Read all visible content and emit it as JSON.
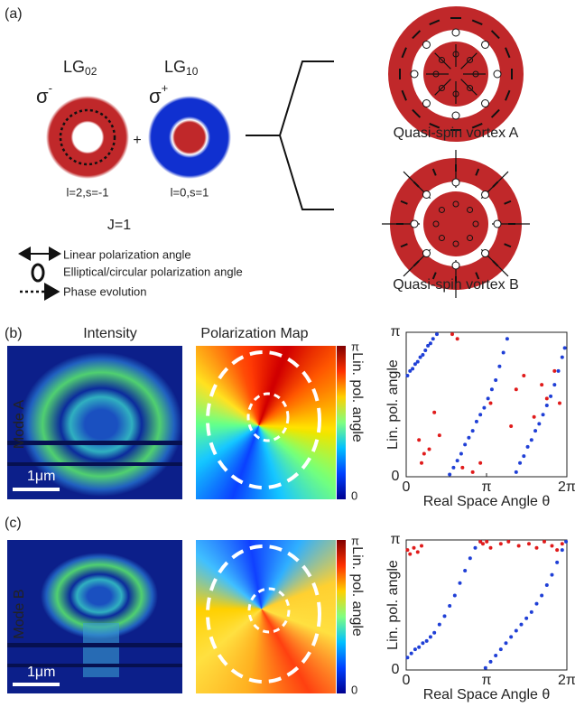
{
  "panel_a": {
    "label": "(a)",
    "lg02": {
      "base": "LG",
      "sub": "02"
    },
    "lg10": {
      "base": "LG",
      "sub": "10"
    },
    "sigma_minus": {
      "base": "σ",
      "sup": "-"
    },
    "sigma_plus": {
      "base": "σ",
      "sup": "+"
    },
    "plus": "+",
    "left_state": "l=2,s=-1",
    "right_state": "l=0,s=1",
    "total": "J=1",
    "legend": [
      "Linear polarization angle",
      "Elliptical/circular polarization angle",
      "Phase evolution"
    ],
    "vortex_a": "Quasi-spin vortex A",
    "vortex_b": "Quasi-spin vortex B"
  },
  "panel_b": {
    "label": "(b)",
    "intensity": "Intensity",
    "polmap": "Polarization Map",
    "mode": "Mode A",
    "scale": "1μm",
    "cb_top": "π",
    "cb_bottom": "0",
    "cb_label": "Lin. pol. angle"
  },
  "panel_c": {
    "label": "(c)",
    "mode": "Mode B",
    "scale": "1μm",
    "cb_top": "π",
    "cb_bottom": "0",
    "cb_label": "Lin. pol. angle"
  },
  "chart_data": [
    {
      "type": "scatter",
      "xlabel": "Real Space Angle θ",
      "ylabel": "Lin. pol. angle",
      "xlim": [
        0,
        6.2832
      ],
      "ylim": [
        0,
        3.1416
      ],
      "xticks": [
        0,
        {
          "value": 3.1416,
          "label": "π"
        },
        {
          "value": 6.2832,
          "label": "2π"
        }
      ],
      "yticks": [
        0,
        {
          "value": 3.1416,
          "label": "π"
        }
      ],
      "series": [
        {
          "color": "#1f3fd6",
          "x": [
            0.05,
            0.15,
            0.25,
            0.35,
            0.45,
            0.55,
            0.65,
            0.75,
            0.85,
            0.95,
            1.05,
            1.2,
            1.7,
            1.85,
            2.0,
            2.15,
            2.3,
            2.45,
            2.6,
            2.75,
            2.9,
            3.05,
            3.2,
            3.35,
            3.5,
            3.65,
            3.8,
            3.95,
            4.3,
            4.45,
            4.6,
            4.75,
            4.9,
            5.05,
            5.2,
            5.35,
            5.5,
            5.65,
            5.8,
            5.95,
            6.1,
            6.2
          ],
          "values": [
            2.2,
            2.3,
            2.35,
            2.45,
            2.5,
            2.6,
            2.65,
            2.75,
            2.85,
            2.9,
            3.0,
            3.1,
            0.05,
            0.2,
            0.35,
            0.5,
            0.7,
            0.85,
            1.0,
            1.2,
            1.35,
            1.5,
            1.7,
            1.9,
            2.1,
            2.4,
            2.7,
            3.0,
            0.1,
            0.3,
            0.45,
            0.65,
            0.8,
            1.0,
            1.15,
            1.35,
            1.55,
            1.75,
            2.0,
            2.3,
            2.6,
            2.8
          ]
        },
        {
          "color": "#e01b1b",
          "x": [
            0.5,
            0.7,
            0.9,
            0.6,
            1.1,
            1.3,
            1.8,
            2.0,
            2.2,
            2.6,
            2.9,
            3.3,
            4.1,
            4.3,
            4.6,
            5.0,
            5.3,
            5.5,
            5.8,
            6.0
          ],
          "values": [
            0.8,
            0.5,
            0.6,
            0.3,
            1.4,
            0.9,
            3.1,
            3.0,
            0.2,
            0.1,
            0.3,
            1.6,
            1.1,
            1.9,
            2.2,
            1.3,
            2.0,
            1.7,
            2.3,
            1.6
          ]
        }
      ]
    },
    {
      "type": "scatter",
      "xlabel": "Real Space Angle θ",
      "ylabel": "Lin. pol. angle",
      "xlim": [
        0,
        6.2832
      ],
      "ylim": [
        0,
        3.1416
      ],
      "xticks": [
        0,
        {
          "value": 3.1416,
          "label": "π"
        },
        {
          "value": 6.2832,
          "label": "2π"
        }
      ],
      "yticks": [
        0,
        {
          "value": 3.1416,
          "label": "π"
        }
      ],
      "series": [
        {
          "color": "#1f3fd6",
          "x": [
            0.05,
            0.2,
            0.35,
            0.5,
            0.65,
            0.8,
            0.95,
            1.1,
            1.3,
            1.5,
            1.7,
            1.9,
            2.1,
            2.3,
            2.5,
            2.7,
            2.9,
            3.1,
            3.3,
            3.5,
            3.7,
            3.9,
            4.1,
            4.3,
            4.5,
            4.7,
            4.9,
            5.1,
            5.3,
            5.5,
            5.7,
            5.9,
            6.1,
            6.25
          ],
          "values": [
            0.3,
            0.4,
            0.5,
            0.55,
            0.65,
            0.7,
            0.8,
            0.9,
            1.1,
            1.3,
            1.55,
            1.8,
            2.1,
            2.4,
            2.7,
            2.95,
            3.1,
            0.05,
            0.2,
            0.35,
            0.5,
            0.65,
            0.8,
            0.95,
            1.1,
            1.25,
            1.4,
            1.6,
            1.8,
            2.05,
            2.3,
            2.6,
            2.9,
            3.1
          ]
        },
        {
          "color": "#e01b1b",
          "x": [
            0.05,
            0.15,
            0.3,
            0.45,
            0.6,
            2.9,
            3.0,
            3.15,
            3.3,
            3.7,
            4.0,
            4.4,
            4.8,
            5.1,
            5.4,
            5.7,
            5.9,
            6.1
          ],
          "values": [
            2.9,
            2.8,
            2.95,
            2.85,
            3.0,
            3.1,
            3.05,
            3.1,
            2.95,
            3.05,
            3.1,
            3.0,
            3.05,
            2.95,
            3.1,
            3.0,
            2.9,
            3.05
          ]
        }
      ]
    }
  ]
}
